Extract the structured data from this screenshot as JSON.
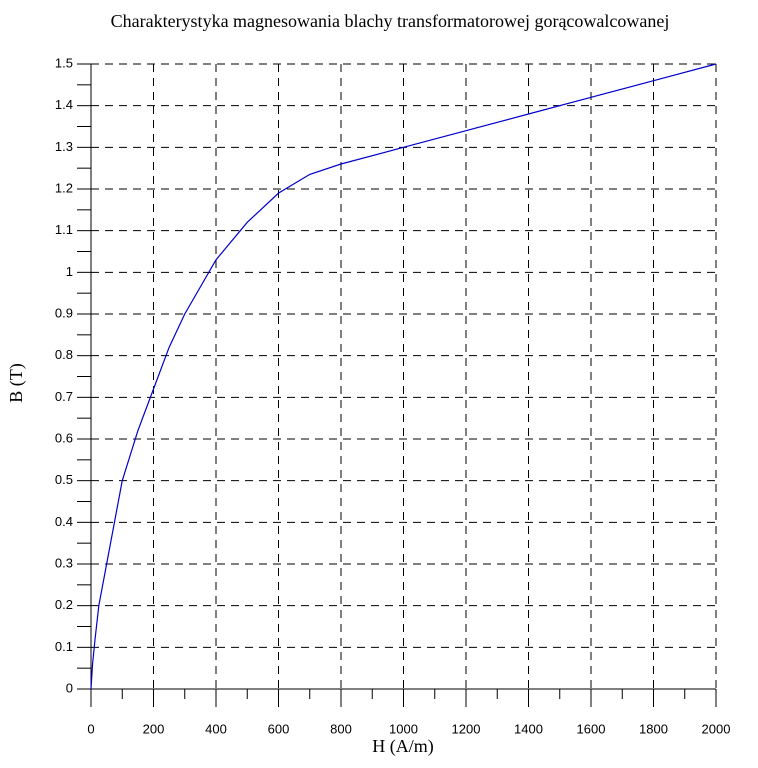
{
  "chart_data": {
    "type": "line",
    "title": "Charakterystyka magnesowania blachy transformatorowej gorącowalcowanej",
    "x_label": "H (A/m)",
    "y_label": "B (T)",
    "x": [
      0,
      5,
      13,
      25,
      50,
      75,
      100,
      150,
      200,
      250,
      300,
      400,
      500,
      600,
      700,
      800,
      1000,
      1200,
      1400,
      1600,
      1800,
      2000
    ],
    "series": [
      {
        "color": "#0000cc",
        "values": [
          0,
          0.06,
          0.12,
          0.2,
          0.3,
          0.4,
          0.5,
          0.62,
          0.72,
          0.82,
          0.9,
          1.03,
          1.12,
          1.19,
          1.235,
          1.26,
          1.3,
          1.34,
          1.38,
          1.42,
          1.46,
          1.5
        ]
      }
    ],
    "xlim": [
      0,
      2000
    ],
    "ylim": [
      0,
      1.5
    ],
    "xticks": [
      0,
      200,
      400,
      600,
      800,
      1000,
      1200,
      1400,
      1600,
      1800,
      2000
    ],
    "yticks": [
      0,
      0.1,
      0.2,
      0.3,
      0.4,
      0.5,
      0.6,
      0.7,
      0.8,
      0.9,
      1,
      1.1,
      1.2,
      1.3,
      1.4,
      1.5
    ],
    "xminorticks": [
      100,
      300,
      500,
      700,
      900,
      1100,
      1300,
      1500,
      1700,
      1900
    ],
    "yminorticks": [
      0.05,
      0.15,
      0.25,
      0.35,
      0.45,
      0.55,
      0.65,
      0.75,
      0.85,
      0.95,
      1.05,
      1.15,
      1.25,
      1.35,
      1.45
    ],
    "grid": true
  }
}
